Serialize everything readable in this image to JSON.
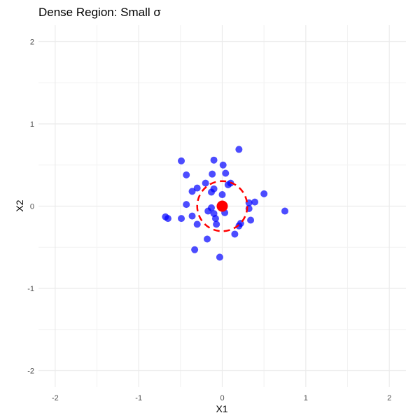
{
  "chart_data": {
    "type": "scatter",
    "title": "Dense Region: Small σ",
    "xlabel": "X1",
    "ylabel": "X2",
    "xlim": [
      -2.2,
      2.2
    ],
    "ylim": [
      -2.2,
      2.2
    ],
    "xticks": [
      -2,
      -1,
      0,
      1,
      2
    ],
    "yticks": [
      -2,
      -1,
      0,
      1,
      2
    ],
    "xtick_labels": [
      "-2",
      "-1",
      "0",
      "1",
      "2"
    ],
    "ytick_labels": [
      "-2",
      "-1",
      "0",
      "1",
      "2"
    ],
    "grid": true,
    "legend": "none",
    "series": [
      {
        "color": "#0000ff",
        "opacity": 0.7,
        "x": [
          0.2,
          -0.1,
          0.01,
          -0.49,
          -0.43,
          -0.12,
          0.04,
          -0.1,
          0.1,
          0.07,
          -0.2,
          -0.36,
          -0.3,
          -0.13,
          0.0,
          0.5,
          0.39,
          0.32,
          0.75,
          -0.68,
          -0.65,
          -0.43,
          -0.13,
          -0.17,
          -0.49,
          -0.36,
          -0.1,
          0.03,
          0.32,
          0.34,
          0.22,
          0.2,
          0.15,
          -0.3,
          -0.08,
          -0.07,
          -0.18,
          -0.33,
          -0.03
        ],
        "y": [
          0.69,
          0.56,
          0.5,
          0.55,
          0.38,
          0.39,
          0.4,
          0.21,
          0.28,
          0.26,
          0.28,
          0.18,
          0.22,
          0.17,
          0.14,
          0.15,
          0.05,
          0.04,
          -0.06,
          -0.13,
          -0.15,
          0.02,
          -0.02,
          -0.06,
          -0.15,
          -0.12,
          -0.09,
          -0.08,
          -0.03,
          -0.17,
          -0.21,
          -0.24,
          -0.34,
          -0.22,
          -0.15,
          -0.22,
          -0.4,
          -0.53,
          -0.62
        ]
      }
    ],
    "center": {
      "x": 0,
      "y": 0,
      "color": "#ff0000"
    },
    "circle": {
      "cx": 0,
      "cy": 0,
      "r": 0.3,
      "color": "#ff0000",
      "dash": "dashed"
    }
  }
}
